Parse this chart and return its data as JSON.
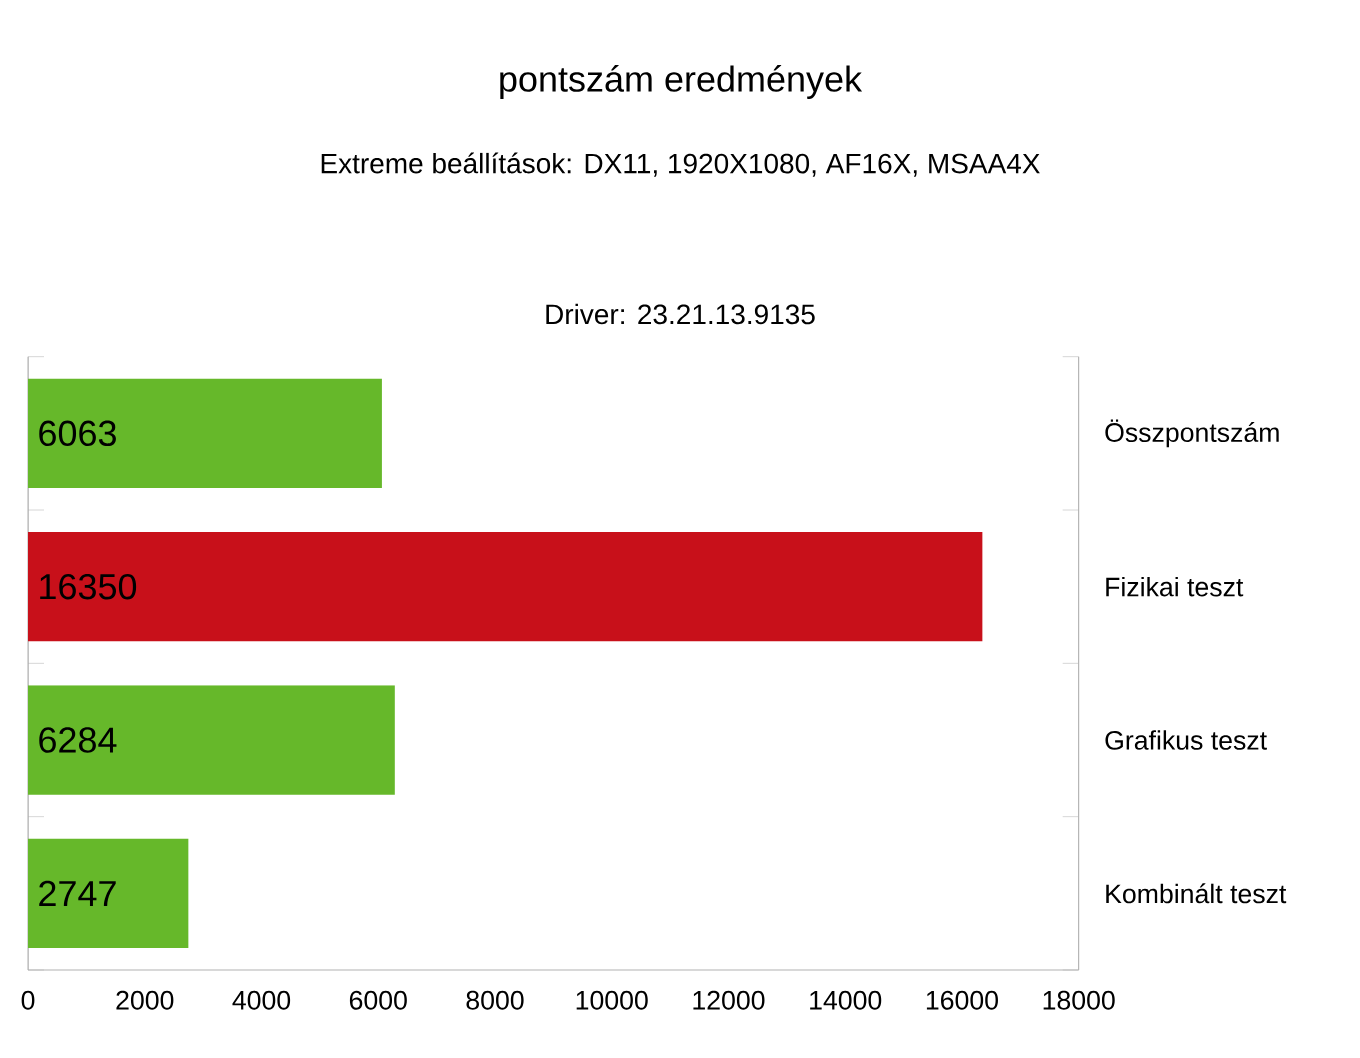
{
  "chart_data": {
    "type": "bar",
    "orientation": "horizontal",
    "title": "pontszám eredmények",
    "subtitle": "Extreme beállítások: DX11, 1920X1080, AF16X, MSAA4X",
    "annotations": [
      "Driver: 23.21.13.9135"
    ],
    "categories": [
      "Összpontszám",
      "Fizikai teszt",
      "Grafikus teszt",
      "Kombinált teszt"
    ],
    "values": [
      6063,
      16350,
      6284,
      2747
    ],
    "colors": [
      "#66b82a",
      "#c8101a",
      "#66b82a",
      "#66b82a"
    ],
    "xlim": [
      0,
      18000
    ],
    "xticks": [
      0,
      2000,
      4000,
      6000,
      8000,
      10000,
      12000,
      14000,
      16000,
      18000
    ],
    "data_labels": true,
    "grid": false
  }
}
